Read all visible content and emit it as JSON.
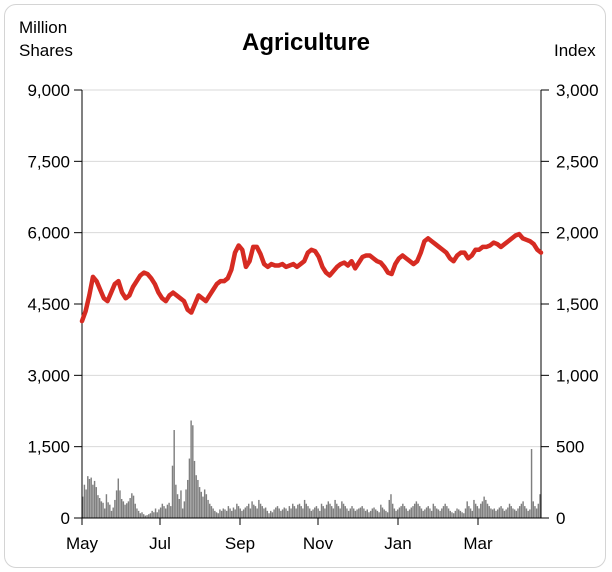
{
  "chart_data": {
    "type": "line",
    "title": "Agriculture",
    "left_axis": {
      "label_line1": "Million",
      "label_line2": "Shares",
      "ticks": [
        "0",
        "1,500",
        "3,000",
        "4,500",
        "6,000",
        "7,500",
        "9,000"
      ],
      "range": [
        0,
        9000
      ]
    },
    "right_axis": {
      "label": "Index",
      "ticks": [
        "0",
        "500",
        "1,000",
        "1,500",
        "2,000",
        "2,500",
        "3,000"
      ],
      "range": [
        0,
        3000
      ]
    },
    "x_ticks": [
      "May",
      "Jul",
      "Sep",
      "Nov",
      "Jan",
      "Mar"
    ],
    "gridlines": true,
    "colors": {
      "index_line": "#d62b22",
      "volume_bars": "#7f7f7f",
      "grid": "#d9d9d9"
    },
    "series": [
      {
        "kind": "line",
        "axis": "right",
        "values": [
          1380,
          1450,
          1560,
          1690,
          1660,
          1600,
          1540,
          1520,
          1580,
          1640,
          1660,
          1580,
          1540,
          1560,
          1620,
          1660,
          1700,
          1720,
          1710,
          1680,
          1640,
          1580,
          1540,
          1520,
          1560,
          1580,
          1560,
          1540,
          1520,
          1460,
          1440,
          1500,
          1560,
          1540,
          1520,
          1560,
          1600,
          1640,
          1660,
          1660,
          1680,
          1740,
          1860,
          1910,
          1880,
          1760,
          1800,
          1900,
          1900,
          1850,
          1780,
          1760,
          1780,
          1770,
          1770,
          1780,
          1760,
          1770,
          1780,
          1760,
          1780,
          1800,
          1860,
          1880,
          1870,
          1830,
          1760,
          1720,
          1700,
          1730,
          1760,
          1780,
          1790,
          1770,
          1800,
          1750,
          1790,
          1830,
          1840,
          1840,
          1820,
          1800,
          1790,
          1760,
          1720,
          1710,
          1780,
          1820,
          1840,
          1820,
          1800,
          1780,
          1800,
          1860,
          1940,
          1960,
          1940,
          1920,
          1900,
          1880,
          1860,
          1820,
          1800,
          1840,
          1860,
          1860,
          1820,
          1840,
          1880,
          1880,
          1900,
          1900,
          1910,
          1930,
          1920,
          1900,
          1920,
          1940,
          1960,
          1980,
          1990,
          1960,
          1950,
          1940,
          1920,
          1880,
          1860
        ]
      },
      {
        "kind": "bar",
        "axis": "left",
        "values": [
          450,
          700,
          600,
          880,
          820,
          850,
          700,
          780,
          650,
          480,
          420,
          350,
          320,
          200,
          500,
          330,
          280,
          150,
          220,
          380,
          580,
          830,
          580,
          400,
          350,
          280,
          310,
          350,
          420,
          520,
          470,
          300,
          200,
          150,
          100,
          120,
          80,
          50,
          60,
          80,
          100,
          150,
          120,
          200,
          120,
          180,
          220,
          300,
          250,
          200,
          280,
          320,
          250,
          1100,
          1850,
          700,
          500,
          400,
          580,
          200,
          350,
          600,
          800,
          1250,
          2050,
          1950,
          1200,
          900,
          800,
          650,
          550,
          450,
          600,
          500,
          380,
          300,
          250,
          200,
          150,
          120,
          100,
          180,
          150,
          200,
          180,
          150,
          250,
          200,
          150,
          220,
          180,
          300,
          250,
          200,
          150,
          180,
          220,
          250,
          300,
          200,
          350,
          280,
          250,
          200,
          380,
          300,
          250,
          200,
          220,
          150,
          100,
          150,
          120,
          180,
          220,
          250,
          200,
          150,
          180,
          220,
          200,
          150,
          250,
          200,
          300,
          250,
          200,
          280,
          300,
          250,
          200,
          380,
          300,
          250,
          200,
          150,
          180,
          220,
          250,
          200,
          150,
          300,
          250,
          200,
          280,
          350,
          300,
          250,
          200,
          380,
          300,
          250,
          200,
          350,
          300,
          250,
          200,
          150,
          200,
          250,
          200,
          150,
          180,
          200,
          220,
          250,
          200,
          150,
          180,
          120,
          150,
          200,
          220,
          180,
          150,
          120,
          280,
          220,
          180,
          150,
          120,
          380,
          500,
          300,
          200,
          150,
          180,
          220,
          250,
          300,
          250,
          200,
          150,
          180,
          220,
          250,
          300,
          350,
          300,
          250,
          200,
          150,
          180,
          220,
          250,
          200,
          150,
          300,
          250,
          200,
          180,
          150,
          200,
          250,
          300,
          250,
          200,
          150,
          120,
          100,
          150,
          200,
          180,
          150,
          120,
          100,
          200,
          350,
          250,
          200,
          150,
          380,
          300,
          250,
          200,
          300,
          350,
          450,
          380,
          300,
          250,
          200,
          180,
          200,
          150,
          180,
          220,
          250,
          200,
          150,
          180,
          220,
          300,
          250,
          200,
          180,
          150,
          200,
          250,
          300,
          350,
          250,
          200,
          150,
          180,
          1450,
          350,
          250,
          200,
          300,
          500
        ]
      }
    ]
  }
}
